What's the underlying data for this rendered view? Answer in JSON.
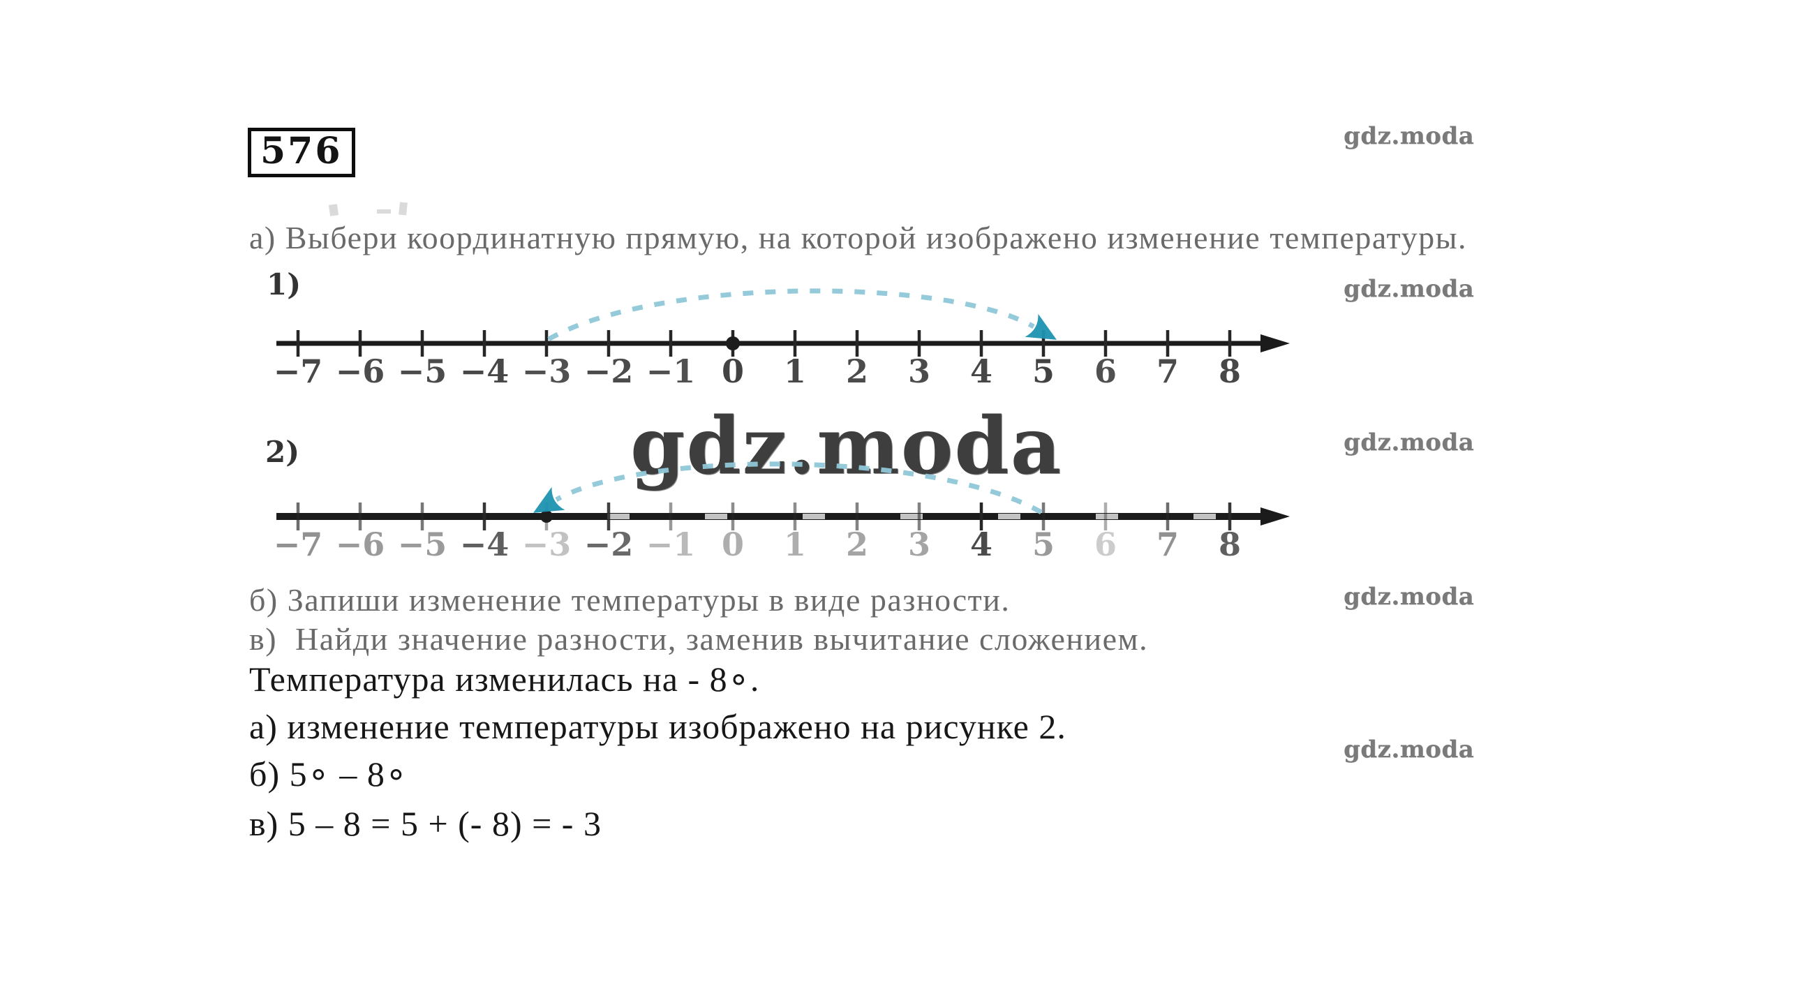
{
  "problem": {
    "number": "576"
  },
  "watermark": {
    "text": "gdz.moda",
    "small_color": "#7a7a7a",
    "big_color": "#3e3e3e"
  },
  "task": {
    "line_a": "а) Выбери координатную прямую, на которой изображено изменение температуры.",
    "line_b": "б) Запиши изменение температуры в виде разности.",
    "line_v": "в)  Найди значение разности, заменив вычитание сложением."
  },
  "solution": {
    "line_intro": "Температура изменилась на - 8∘.",
    "line_a": "а) изменение температуры изображено на рисунке 2.",
    "line_b": "б) 5∘ – 8∘",
    "line_v": "в) 5 – 8 = 5 + (- 8) = - 3"
  },
  "figures": [
    {
      "label": "1)",
      "tick_values": [
        -7,
        -6,
        -5,
        -4,
        -3,
        -2,
        -1,
        0,
        1,
        2,
        3,
        4,
        5,
        6,
        7,
        8
      ],
      "tick_labels": [
        "−7",
        "−6",
        "−5",
        "−4",
        "−3",
        "−2",
        "−1",
        "0",
        "1",
        "2",
        "3",
        "4",
        "5",
        "6",
        "7",
        "8"
      ],
      "label_opacity": [
        0.92,
        0.9,
        0.9,
        0.92,
        0.88,
        0.9,
        0.88,
        0.95,
        0.92,
        0.9,
        0.9,
        0.92,
        0.95,
        0.88,
        0.9,
        0.92
      ],
      "arc": {
        "from": -3,
        "to": 5,
        "direction": "right"
      },
      "dot_at": 0,
      "arc_color": "#8fc8d7",
      "arrow_color": "#1d93b2"
    },
    {
      "label": "2)",
      "tick_values": [
        -7,
        -6,
        -5,
        -4,
        -3,
        -2,
        -1,
        0,
        1,
        2,
        3,
        4,
        5,
        6,
        7,
        8
      ],
      "tick_labels": [
        "−7",
        "−6",
        "−5",
        "−4",
        "−3",
        "−2",
        "−1",
        "0",
        "1",
        "2",
        "3",
        "4",
        "5",
        "6",
        "7",
        "8"
      ],
      "label_opacity": [
        0.55,
        0.5,
        0.5,
        0.8,
        0.3,
        0.75,
        0.35,
        0.4,
        0.4,
        0.45,
        0.45,
        0.9,
        0.5,
        0.25,
        0.55,
        0.8
      ],
      "arc": {
        "from": 5,
        "to": -3,
        "direction": "left"
      },
      "dot_at": -3,
      "arc_color": "#8fc8d7",
      "arrow_color": "#1d93b2"
    }
  ]
}
